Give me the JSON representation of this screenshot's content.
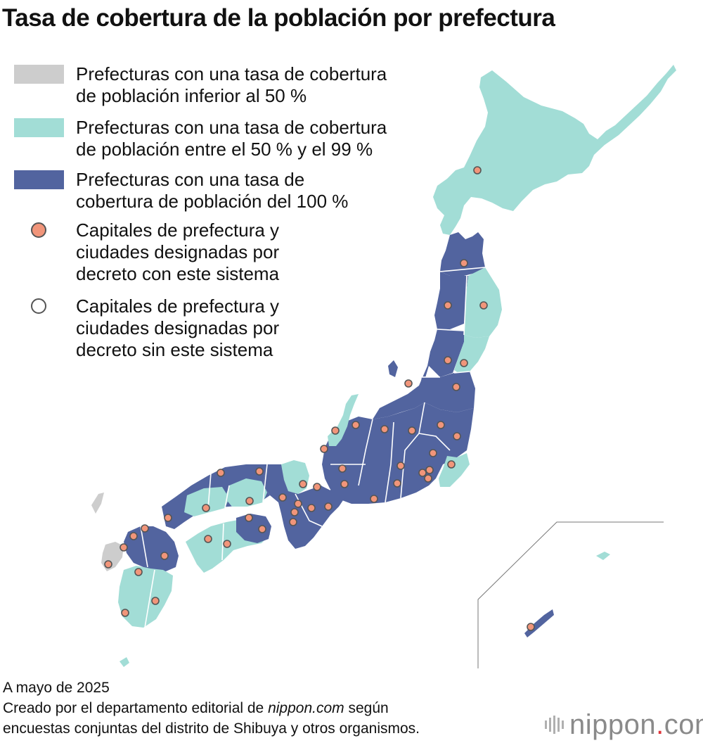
{
  "title": "Tasa de cobertura de la población por prefectura",
  "legend": {
    "items": [
      {
        "kind": "swatch",
        "color": "#cdcdcd",
        "lines": [
          "Prefecturas con una tasa de cobertura",
          "de población inferior al 50 %"
        ]
      },
      {
        "kind": "swatch",
        "color": "#a2ddd6",
        "lines": [
          "Prefecturas con una tasa de cobertura",
          "de población entre el 50 % y el 99 %"
        ]
      },
      {
        "kind": "swatch",
        "color": "#52649f",
        "lines": [
          "Prefecturas con una tasa de",
          "cobertura de población del 100 %"
        ]
      },
      {
        "kind": "dot",
        "color": "#f1957a",
        "lines": [
          "Capitales de prefectura y",
          "ciudades designadas por",
          "decreto con este sistema"
        ]
      },
      {
        "kind": "dot",
        "color": "#ffffff",
        "lines": [
          "Capitales de prefectura y",
          "ciudades designadas por",
          "decreto sin este sistema"
        ]
      }
    ]
  },
  "footer": {
    "line1": "A mayo de 2025",
    "line2_pre": "Creado por el departamento editorial de ",
    "line2_em": "nippon.com",
    "line2_post": " según",
    "line3": "encuestas conjuntas del distrito de Shibuya y otros organismos."
  },
  "brand": {
    "name": "nippon",
    "sep": ".",
    "tld": "com"
  },
  "colors": {
    "low": "#cdcdcd",
    "mid": "#a2ddd6",
    "full": "#52649f",
    "city": "#f1957a",
    "border": "#ffffff"
  }
}
